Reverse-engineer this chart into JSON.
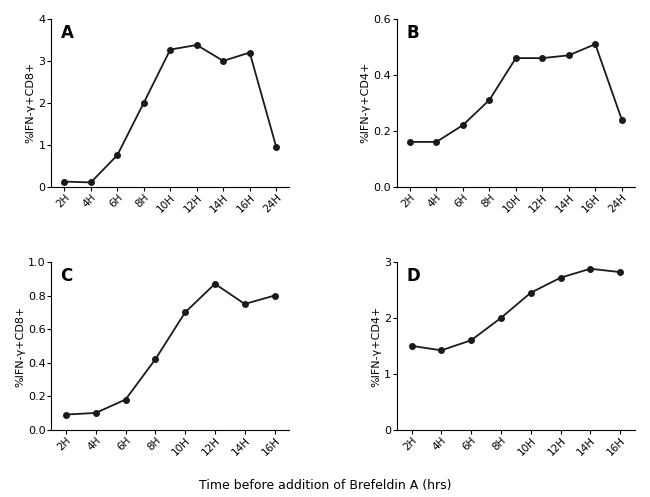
{
  "panel_A": {
    "label": "A",
    "x_labels": [
      "2H",
      "4H",
      "6H",
      "8H",
      "10H",
      "12H",
      "14H",
      "16H",
      "24H"
    ],
    "y_vals": [
      0.12,
      0.1,
      0.75,
      2.0,
      3.27,
      3.38,
      3.0,
      3.2,
      0.95
    ],
    "ylabel": "%IFN-γ+CD8+",
    "ylim": [
      0,
      4
    ],
    "yticks": [
      0,
      1,
      2,
      3,
      4
    ]
  },
  "panel_B": {
    "label": "B",
    "x_labels": [
      "2H",
      "4H",
      "6H",
      "8H",
      "10H",
      "12H",
      "14H",
      "16H",
      "24H"
    ],
    "y_vals": [
      0.16,
      0.16,
      0.22,
      0.31,
      0.46,
      0.46,
      0.47,
      0.51,
      0.24
    ],
    "ylabel": "%IFN-γ+CD4+",
    "ylim": [
      0.0,
      0.6
    ],
    "yticks": [
      0.0,
      0.2,
      0.4,
      0.6
    ]
  },
  "panel_C": {
    "label": "C",
    "x_labels": [
      "2H",
      "4H",
      "6H",
      "8H",
      "10H",
      "12H",
      "14H",
      "16H"
    ],
    "y_vals": [
      0.09,
      0.1,
      0.18,
      0.42,
      0.7,
      0.87,
      0.75,
      0.8
    ],
    "ylabel": "%IFN-γ+CD8+",
    "ylim": [
      0.0,
      1.0
    ],
    "yticks": [
      0.0,
      0.2,
      0.4,
      0.6,
      0.8,
      1.0
    ]
  },
  "panel_D": {
    "label": "D",
    "x_labels": [
      "2H",
      "4H",
      "6H",
      "8H",
      "10H",
      "12H",
      "14H",
      "16H"
    ],
    "y_vals": [
      1.5,
      1.42,
      1.6,
      2.0,
      2.45,
      2.72,
      2.88,
      2.82
    ],
    "ylabel": "%IFN-γ+CD4+",
    "ylim": [
      0,
      3
    ],
    "yticks": [
      0,
      1,
      2,
      3
    ]
  },
  "xlabel": "Time before addition of Brefeldin A (hrs)",
  "line_color": "#1a1a1a",
  "marker": "o",
  "markersize": 4,
  "linewidth": 1.3
}
